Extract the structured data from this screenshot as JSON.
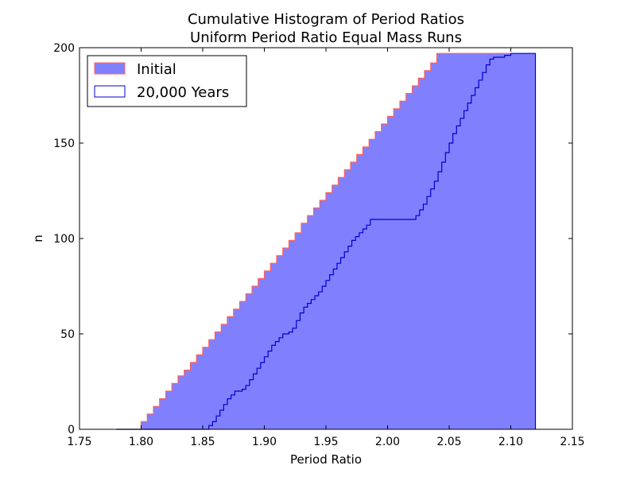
{
  "chart_data": {
    "type": "area",
    "title": "Cumulative Histogram of Period Ratios",
    "subtitle": "Uniform Period Ratio Equal Mass Runs",
    "xlabel": "Period Ratio",
    "ylabel": "n",
    "xlim": [
      1.75,
      2.15
    ],
    "ylim": [
      0,
      200
    ],
    "xticks": [
      "1.75",
      "1.80",
      "1.85",
      "1.90",
      "1.95",
      "2.00",
      "2.05",
      "2.10",
      "2.15"
    ],
    "yticks": [
      "0",
      "50",
      "100",
      "150",
      "200"
    ],
    "grid": false,
    "legend_position": "top-left",
    "series": [
      {
        "name": "Initial",
        "style": "stepfilled",
        "fill_color": "#8080ff",
        "edge_color": "#ff6060",
        "points": [
          [
            1.78,
            0
          ],
          [
            1.8,
            4
          ],
          [
            1.805,
            8
          ],
          [
            1.81,
            12
          ],
          [
            1.815,
            16
          ],
          [
            1.82,
            20
          ],
          [
            1.825,
            24
          ],
          [
            1.83,
            28
          ],
          [
            1.835,
            31
          ],
          [
            1.84,
            35
          ],
          [
            1.845,
            39
          ],
          [
            1.85,
            43
          ],
          [
            1.855,
            47
          ],
          [
            1.86,
            51
          ],
          [
            1.865,
            55
          ],
          [
            1.87,
            59
          ],
          [
            1.875,
            63
          ],
          [
            1.88,
            67
          ],
          [
            1.885,
            71
          ],
          [
            1.89,
            75
          ],
          [
            1.895,
            79
          ],
          [
            1.9,
            83
          ],
          [
            1.905,
            87
          ],
          [
            1.91,
            91
          ],
          [
            1.915,
            95
          ],
          [
            1.92,
            99
          ],
          [
            1.925,
            103
          ],
          [
            1.93,
            108
          ],
          [
            1.935,
            112
          ],
          [
            1.94,
            116
          ],
          [
            1.945,
            120
          ],
          [
            1.95,
            124
          ],
          [
            1.955,
            128
          ],
          [
            1.96,
            132
          ],
          [
            1.965,
            136
          ],
          [
            1.97,
            140
          ],
          [
            1.975,
            144
          ],
          [
            1.98,
            148
          ],
          [
            1.985,
            152
          ],
          [
            1.99,
            156
          ],
          [
            1.995,
            160
          ],
          [
            2.0,
            164
          ],
          [
            2.005,
            168
          ],
          [
            2.01,
            172
          ],
          [
            2.015,
            176
          ],
          [
            2.02,
            180
          ],
          [
            2.025,
            184
          ],
          [
            2.03,
            188
          ],
          [
            2.035,
            192
          ],
          [
            2.04,
            197
          ],
          [
            2.1,
            197
          ]
        ]
      },
      {
        "name": "20,000 Years",
        "style": "step",
        "fill_color": "#8080ff",
        "edge_color": "#0000cc",
        "points": [
          [
            1.78,
            0
          ],
          [
            1.853,
            0
          ],
          [
            1.855,
            2
          ],
          [
            1.858,
            4
          ],
          [
            1.861,
            7
          ],
          [
            1.864,
            10
          ],
          [
            1.867,
            13
          ],
          [
            1.87,
            16
          ],
          [
            1.873,
            18
          ],
          [
            1.876,
            20
          ],
          [
            1.882,
            21
          ],
          [
            1.885,
            23
          ],
          [
            1.888,
            26
          ],
          [
            1.891,
            29
          ],
          [
            1.894,
            32
          ],
          [
            1.897,
            35
          ],
          [
            1.9,
            38
          ],
          [
            1.903,
            41
          ],
          [
            1.906,
            44
          ],
          [
            1.909,
            46
          ],
          [
            1.912,
            48
          ],
          [
            1.915,
            50
          ],
          [
            1.92,
            51
          ],
          [
            1.923,
            53
          ],
          [
            1.926,
            57
          ],
          [
            1.929,
            61
          ],
          [
            1.932,
            64
          ],
          [
            1.935,
            66
          ],
          [
            1.938,
            68
          ],
          [
            1.941,
            70
          ],
          [
            1.944,
            72
          ],
          [
            1.947,
            75
          ],
          [
            1.95,
            78
          ],
          [
            1.953,
            81
          ],
          [
            1.956,
            84
          ],
          [
            1.959,
            87
          ],
          [
            1.962,
            90
          ],
          [
            1.965,
            93
          ],
          [
            1.968,
            96
          ],
          [
            1.971,
            99
          ],
          [
            1.974,
            101
          ],
          [
            1.977,
            103
          ],
          [
            1.98,
            105
          ],
          [
            1.983,
            107
          ],
          [
            1.986,
            110
          ],
          [
            2.02,
            110
          ],
          [
            2.023,
            112
          ],
          [
            2.026,
            115
          ],
          [
            2.029,
            118
          ],
          [
            2.032,
            122
          ],
          [
            2.035,
            126
          ],
          [
            2.038,
            130
          ],
          [
            2.041,
            135
          ],
          [
            2.044,
            140
          ],
          [
            2.047,
            145
          ],
          [
            2.05,
            150
          ],
          [
            2.053,
            155
          ],
          [
            2.056,
            159
          ],
          [
            2.059,
            163
          ],
          [
            2.062,
            167
          ],
          [
            2.065,
            171
          ],
          [
            2.068,
            175
          ],
          [
            2.071,
            179
          ],
          [
            2.074,
            183
          ],
          [
            2.077,
            187
          ],
          [
            2.08,
            191
          ],
          [
            2.083,
            194
          ],
          [
            2.086,
            195
          ],
          [
            2.095,
            196
          ],
          [
            2.1,
            197
          ],
          [
            2.12,
            197
          ]
        ]
      }
    ]
  }
}
